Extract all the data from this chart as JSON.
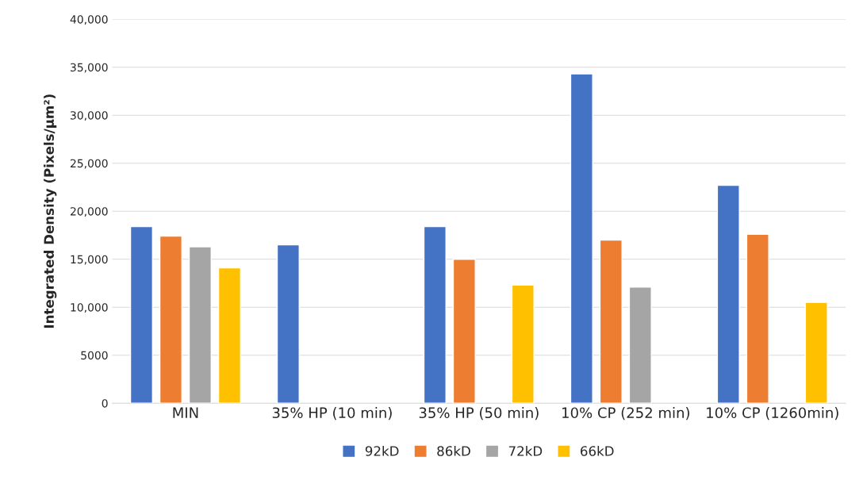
{
  "chart_data": {
    "type": "bar",
    "categories": [
      "MIN",
      "35% HP (10 min)",
      "35% HP (50 min)",
      "10% CP (252 min)",
      "10% CP (1260min)"
    ],
    "ylabel": "Integrated Density (Pixels/μm²)",
    "series": [
      {
        "name": "92kD",
        "color": "#4472c4",
        "values": [
          18400,
          16500,
          18400,
          34300,
          22700
        ]
      },
      {
        "name": "86kD",
        "color": "#ed7d31",
        "values": [
          17400,
          null,
          15000,
          17000,
          17600
        ]
      },
      {
        "name": "72kD",
        "color": "#a5a5a5",
        "values": [
          16300,
          null,
          null,
          12100,
          null
        ]
      },
      {
        "name": "66kD",
        "color": "#ffc000",
        "values": [
          14100,
          null,
          12300,
          null,
          10500
        ]
      }
    ],
    "ylim": [
      0,
      40000
    ],
    "yticks": [
      0,
      5000,
      {
        "value": 10000,
        "label": "10,000"
      },
      {
        "value": 15000,
        "label": "15,000"
      },
      {
        "value": 20000,
        "label": "20,000"
      },
      {
        "value": 25000,
        "label": "25,000"
      },
      {
        "value": 30000,
        "label": "30,000"
      },
      {
        "value": 35000,
        "label": "35,000"
      },
      {
        "value": 40000,
        "label": "40,000"
      }
    ],
    "grid": "y",
    "legend": "bottom"
  }
}
